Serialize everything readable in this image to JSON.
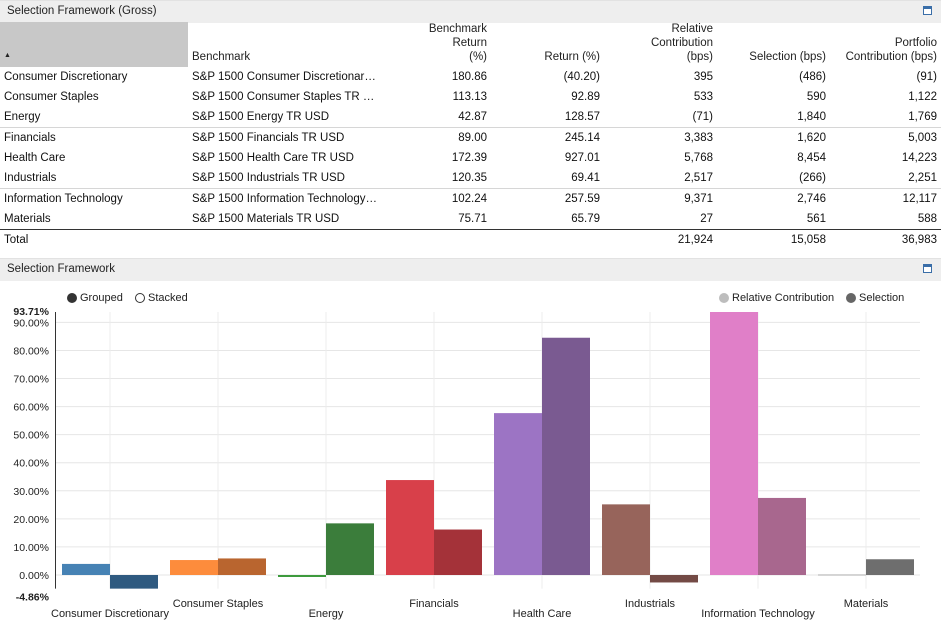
{
  "table_panel": {
    "title": "Selection Framework (Gross)"
  },
  "table": {
    "sort_indicator": "▲",
    "headers": {
      "benchmark": "Benchmark",
      "benchmark_return": [
        "Benchmark Return",
        "(%)"
      ],
      "return": "Return (%)",
      "relative_contribution": [
        "Relative Contribution",
        "(bps)"
      ],
      "selection": "Selection (bps)",
      "portfolio_contribution": [
        "Portfolio",
        "Contribution (bps)"
      ]
    },
    "rows": [
      {
        "sector": "Consumer Discretionary",
        "benchmark": "S&P 1500 Consumer Discretionar…",
        "bench_return": "180.86",
        "return": "(40.20)",
        "rel_contrib": "395",
        "selection": "(486)",
        "port_contrib": "(91)"
      },
      {
        "sector": "Consumer Staples",
        "benchmark": "S&P 1500 Consumer Staples TR …",
        "bench_return": "113.13",
        "return": "92.89",
        "rel_contrib": "533",
        "selection": "590",
        "port_contrib": "1,122"
      },
      {
        "sector": "Energy",
        "benchmark": "S&P 1500 Energy TR USD",
        "bench_return": "42.87",
        "return": "128.57",
        "rel_contrib": "(71)",
        "selection": "1,840",
        "port_contrib": "1,769"
      },
      {
        "sector": "Financials",
        "benchmark": "S&P 1500 Financials TR USD",
        "bench_return": "89.00",
        "return": "245.14",
        "rel_contrib": "3,383",
        "selection": "1,620",
        "port_contrib": "5,003"
      },
      {
        "sector": "Health Care",
        "benchmark": "S&P 1500 Health Care TR USD",
        "bench_return": "172.39",
        "return": "927.01",
        "rel_contrib": "5,768",
        "selection": "8,454",
        "port_contrib": "14,223"
      },
      {
        "sector": "Industrials",
        "benchmark": "S&P 1500 Industrials TR USD",
        "bench_return": "120.35",
        "return": "69.41",
        "rel_contrib": "2,517",
        "selection": "(266)",
        "port_contrib": "2,251"
      },
      {
        "sector": "Information Technology",
        "benchmark": "S&P 1500 Information Technology…",
        "bench_return": "102.24",
        "return": "257.59",
        "rel_contrib": "9,371",
        "selection": "2,746",
        "port_contrib": "12,117"
      },
      {
        "sector": "Materials",
        "benchmark": "S&P 1500 Materials TR USD",
        "bench_return": "75.71",
        "return": "65.79",
        "rel_contrib": "27",
        "selection": "561",
        "port_contrib": "588"
      }
    ],
    "total": {
      "label": "Total",
      "rel_contrib": "21,924",
      "selection": "15,058",
      "port_contrib": "36,983"
    }
  },
  "chart_panel": {
    "title": "Selection Framework"
  },
  "chart_controls": {
    "grouped_label": "Grouped",
    "stacked_label": "Stacked",
    "selected": "Grouped"
  },
  "chart_data": {
    "type": "bar",
    "mode": "grouped",
    "categories": [
      "Consumer Discretionary",
      "Consumer Staples",
      "Energy",
      "Financials",
      "Health Care",
      "Industrials",
      "Information Technology",
      "Materials"
    ],
    "series": [
      {
        "name": "Relative Contribution",
        "values": [
          3.95,
          5.33,
          -0.71,
          33.83,
          57.68,
          25.17,
          93.71,
          0.27
        ]
      },
      {
        "name": "Selection",
        "values": [
          -4.86,
          5.9,
          18.4,
          16.2,
          84.54,
          -2.66,
          27.46,
          5.61
        ]
      }
    ],
    "bar_colors": [
      [
        "#4682b4",
        "#2f5a80"
      ],
      [
        "#fd8c3c",
        "#b9652f"
      ],
      [
        "#3c9a3c",
        "#3b7d3b"
      ],
      [
        "#d8404a",
        "#a43239"
      ],
      [
        "#9c74c4",
        "#7a5a91"
      ],
      [
        "#97645b",
        "#734a45"
      ],
      [
        "#e07fc8",
        "#a8678e"
      ],
      [
        "#c7c7c7",
        "#6e6e6e"
      ]
    ],
    "legend_colors": {
      "Relative Contribution": "#bdbdbd",
      "Selection": "#666666"
    },
    "y_ticks": [
      "90.00%",
      "80.00%",
      "70.00%",
      "60.00%",
      "50.00%",
      "40.00%",
      "30.00%",
      "20.00%",
      "10.00%",
      "0.00%"
    ],
    "y_tick_values": [
      90,
      80,
      70,
      60,
      50,
      40,
      30,
      20,
      10,
      0
    ],
    "y_max_label": "93.71%",
    "y_min_label": "-4.86%",
    "ylim": [
      -4.86,
      93.71
    ],
    "legend_position": "top-right",
    "grid": true
  }
}
